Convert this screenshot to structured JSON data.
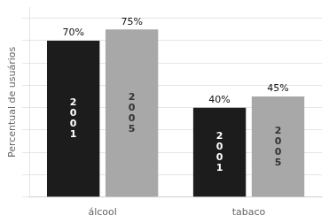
{
  "chart_data": {
    "type": "bar",
    "categories": [
      "álcool",
      "tabaco"
    ],
    "series": [
      {
        "name": "2\n0\n0\n1",
        "color": "#1c1c1c",
        "values": [
          70,
          40
        ],
        "value_labels": [
          "70%",
          "40%"
        ]
      },
      {
        "name": "2\n0\n0\n5",
        "color": "#a8a8a8",
        "values": [
          75,
          45
        ],
        "value_labels": [
          "75%",
          "45%"
        ]
      }
    ],
    "ylabel": "Percentual de usuários",
    "ylim": [
      0,
      85
    ],
    "yticks": [
      0,
      10,
      20,
      30,
      40,
      50,
      60,
      70,
      80
    ],
    "grid": true,
    "tick_labels": "x",
    "data_labels": true
  }
}
